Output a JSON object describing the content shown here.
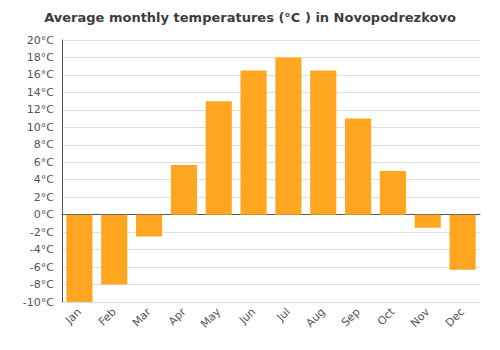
{
  "chart_data": {
    "type": "bar",
    "title": "Average monthly temperatures (°C ) in Novopodrezkovo",
    "categories": [
      "Jan",
      "Feb",
      "Mar",
      "Apr",
      "May",
      "Jun",
      "Jul",
      "Aug",
      "Sep",
      "Oct",
      "Nov",
      "Dec"
    ],
    "values": [
      -10,
      -8,
      -2.5,
      5.7,
      13,
      16.5,
      18,
      16.5,
      11,
      5,
      -1.5,
      -6.3
    ],
    "color": "#FFA620",
    "ylim": [
      -10,
      20
    ],
    "yticks": [
      {
        "value": -10,
        "label": "-10°C"
      },
      {
        "value": -8,
        "label": "-8°C"
      },
      {
        "value": -6,
        "label": "-6°C"
      },
      {
        "value": -4,
        "label": "-4°C"
      },
      {
        "value": -2,
        "label": "-2°C"
      },
      {
        "value": 0,
        "label": "0°C"
      },
      {
        "value": 2,
        "label": "2°C"
      },
      {
        "value": 4,
        "label": "4°C"
      },
      {
        "value": 6,
        "label": "6°C"
      },
      {
        "value": 8,
        "label": "8°C"
      },
      {
        "value": 10,
        "label": "10°C"
      },
      {
        "value": 12,
        "label": "12°C"
      },
      {
        "value": 14,
        "label": "14°C"
      },
      {
        "value": 16,
        "label": "16°C"
      },
      {
        "value": 18,
        "label": "18°C"
      },
      {
        "value": 20,
        "label": "20°C"
      }
    ],
    "grid": true
  }
}
